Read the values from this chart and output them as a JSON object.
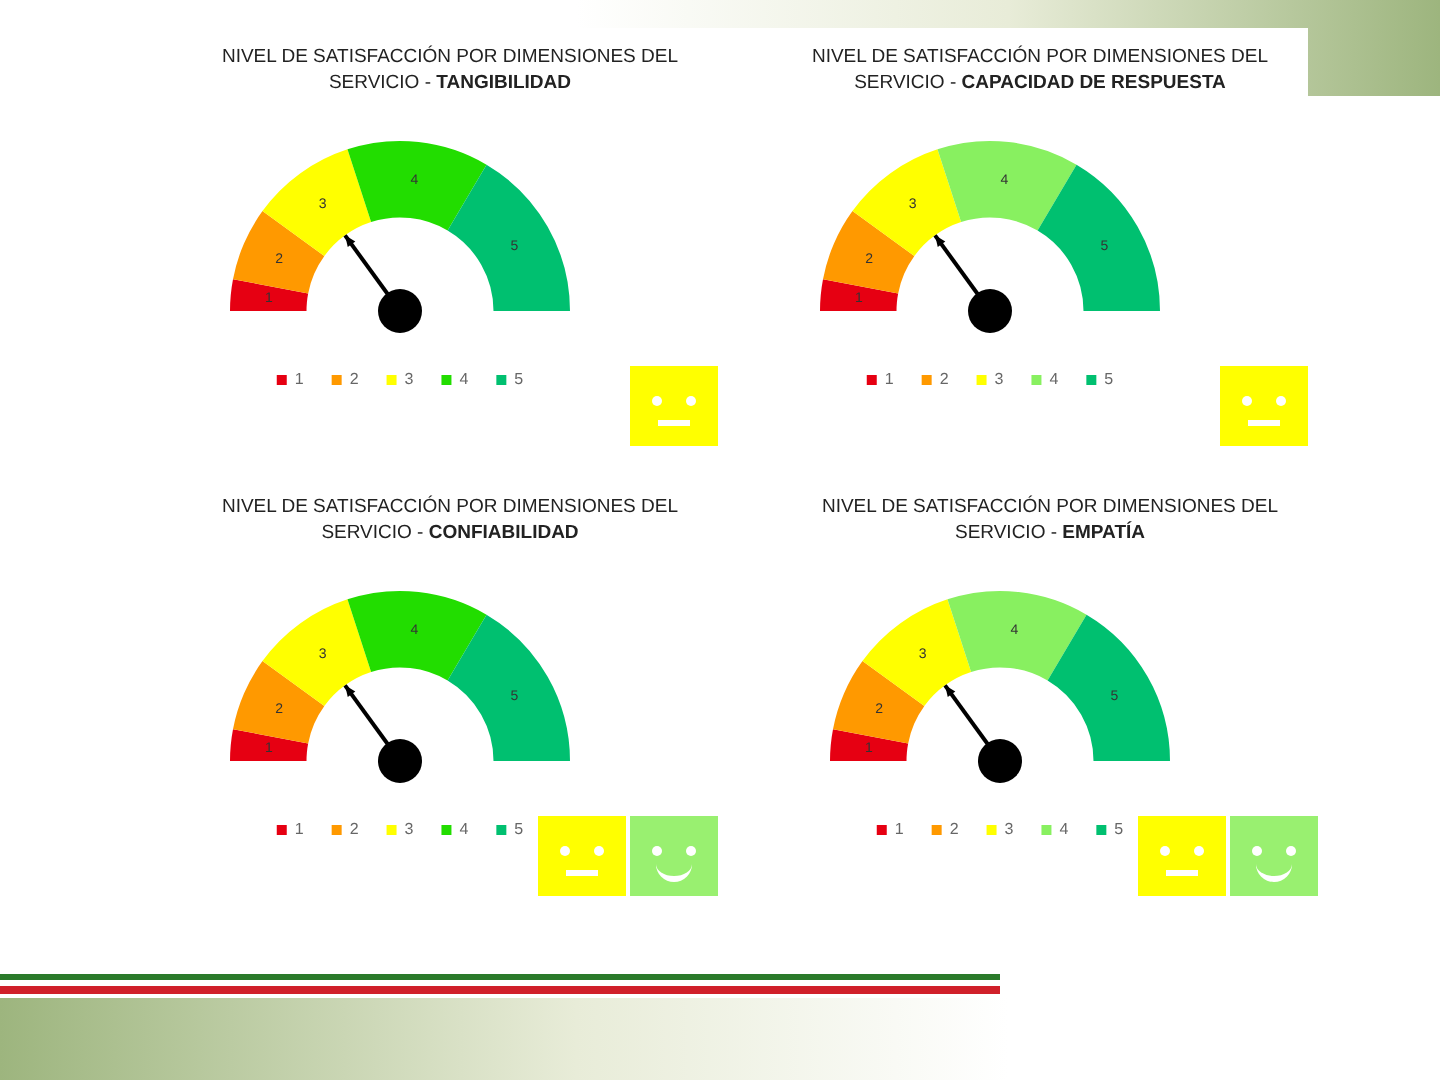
{
  "chart_data": [
    {
      "type": "donut",
      "title": "NIVEL DE SATISFACCIÓN POR DIMENSIONES DEL SERVICIO -",
      "subtitle": "TANGIBILIDAD",
      "categories": [
        "1",
        "2",
        "3",
        "4",
        "5"
      ],
      "values": [
        6,
        14,
        20,
        27,
        33
      ],
      "colors": [
        "#e60012",
        "#ff9900",
        "#ffff00",
        "#22dd00",
        "#00c070"
      ],
      "needle": "3",
      "legend": "bottom"
    },
    {
      "type": "donut",
      "title": "NIVEL DE SATISFACCIÓN POR DIMENSIONES DEL SERVICIO -",
      "subtitle": "CAPACIDAD DE RESPUESTA",
      "categories": [
        "1",
        "2",
        "3",
        "4",
        "5"
      ],
      "values": [
        6,
        14,
        20,
        27,
        33
      ],
      "colors": [
        "#e60012",
        "#ff9900",
        "#ffff00",
        "#88f060",
        "#00c070"
      ],
      "needle": "3",
      "legend": "bottom"
    },
    {
      "type": "donut",
      "title": "NIVEL DE SATISFACCIÓN POR DIMENSIONES DEL SERVICIO -",
      "subtitle": "CONFIABILIDAD",
      "categories": [
        "1",
        "2",
        "3",
        "4",
        "5"
      ],
      "values": [
        6,
        14,
        20,
        27,
        33
      ],
      "colors": [
        "#e60012",
        "#ff9900",
        "#ffff00",
        "#22dd00",
        "#00c070"
      ],
      "needle": "3",
      "legend": "bottom"
    },
    {
      "type": "donut",
      "title": "NIVEL DE SATISFACCIÓN POR DIMENSIONES DEL SERVICIO -",
      "subtitle": "EMPATÍA",
      "categories": [
        "1",
        "2",
        "3",
        "4",
        "5"
      ],
      "values": [
        6,
        14,
        20,
        27,
        33
      ],
      "colors": [
        "#e60012",
        "#ff9900",
        "#ffff00",
        "#88f060",
        "#00c070"
      ],
      "needle": "3",
      "legend": "bottom"
    }
  ]
}
